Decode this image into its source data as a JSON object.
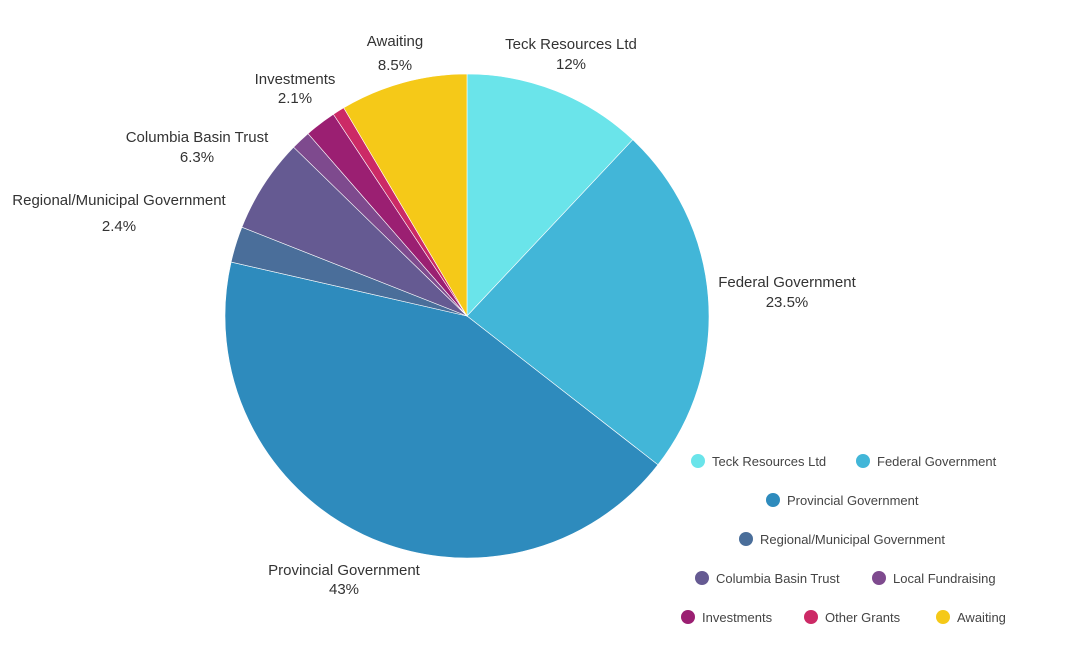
{
  "chart_data": {
    "type": "pie",
    "title": "",
    "start": "12 o'clock",
    "direction": "clockwise",
    "slices": [
      {
        "name": "Teck Resources Ltd",
        "value": 12,
        "label": "12%",
        "color": "#6ae4ea"
      },
      {
        "name": "Federal Government",
        "value": 23.5,
        "label": "23.5%",
        "color": "#42b6d8"
      },
      {
        "name": "Provincial Government",
        "value": 43,
        "label": "43%",
        "color": "#2e8bbd"
      },
      {
        "name": "Regional/Municipal Government",
        "value": 2.4,
        "label": "2.4%",
        "color": "#4a6e9a"
      },
      {
        "name": "Columbia Basin Trust",
        "value": 6.3,
        "label": "6.3%",
        "color": "#655a92"
      },
      {
        "name": "Local Fundraising",
        "value": 1.3,
        "label": "",
        "color": "#7e4a8e"
      },
      {
        "name": "Investments",
        "value": 2.1,
        "label": "2.1%",
        "color": "#9b1f72"
      },
      {
        "name": "Other Grants",
        "value": 0.8,
        "label": "",
        "color": "#cc2a66"
      },
      {
        "name": "Awaiting",
        "value": 8.5,
        "label": "8.5%",
        "color": "#f5c918"
      }
    ],
    "legend": {
      "placement": "bottom-right",
      "rows": [
        [
          "Teck Resources Ltd",
          "Federal Government"
        ],
        [
          "Provincial Government"
        ],
        [
          "Regional/Municipal Government"
        ],
        [
          "Columbia Basin Trust",
          "Local Fundraising"
        ],
        [
          "Investments",
          "Other Grants",
          "Awaiting"
        ]
      ]
    }
  }
}
